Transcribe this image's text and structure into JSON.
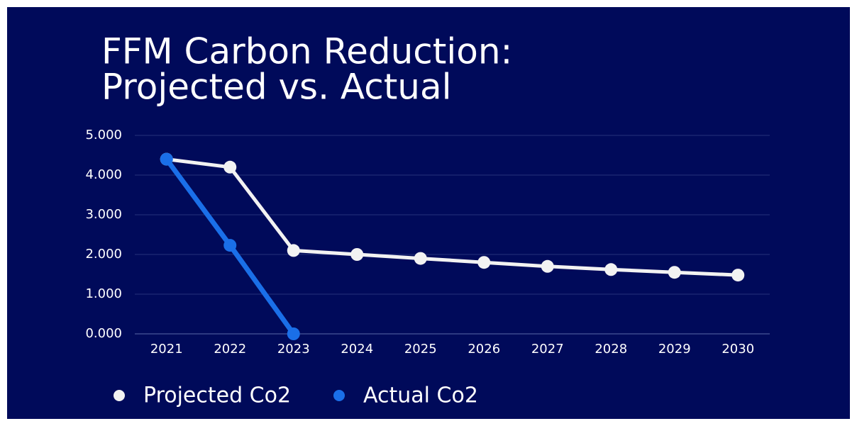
{
  "chart_data": {
    "type": "line",
    "title": [
      "FFM Carbon Reduction:",
      "Projected vs. Actual"
    ],
    "categories": [
      "2021",
      "2022",
      "2023",
      "2024",
      "2025",
      "2026",
      "2027",
      "2028",
      "2029",
      "2030"
    ],
    "series": [
      {
        "name": "Projected Co2",
        "color": "#f2f2f2",
        "values": [
          4400,
          4200,
          2100,
          2000,
          1900,
          1800,
          1700,
          1620,
          1550,
          1480
        ]
      },
      {
        "name": "Actual Co2",
        "color": "#1a6fe8",
        "values": [
          4400,
          2230,
          0,
          null,
          null,
          null,
          null,
          null,
          null,
          null
        ]
      }
    ],
    "ylim": [
      0,
      5000
    ],
    "yticks": [
      {
        "value": 0,
        "label": "0.000"
      },
      {
        "value": 1000,
        "label": "1.000"
      },
      {
        "value": 2000,
        "label": "2.000"
      },
      {
        "value": 3000,
        "label": "3.000"
      },
      {
        "value": 4000,
        "label": "4.000"
      },
      {
        "value": 5000,
        "label": "5.000"
      }
    ],
    "grid": true,
    "legend": "bottom"
  }
}
